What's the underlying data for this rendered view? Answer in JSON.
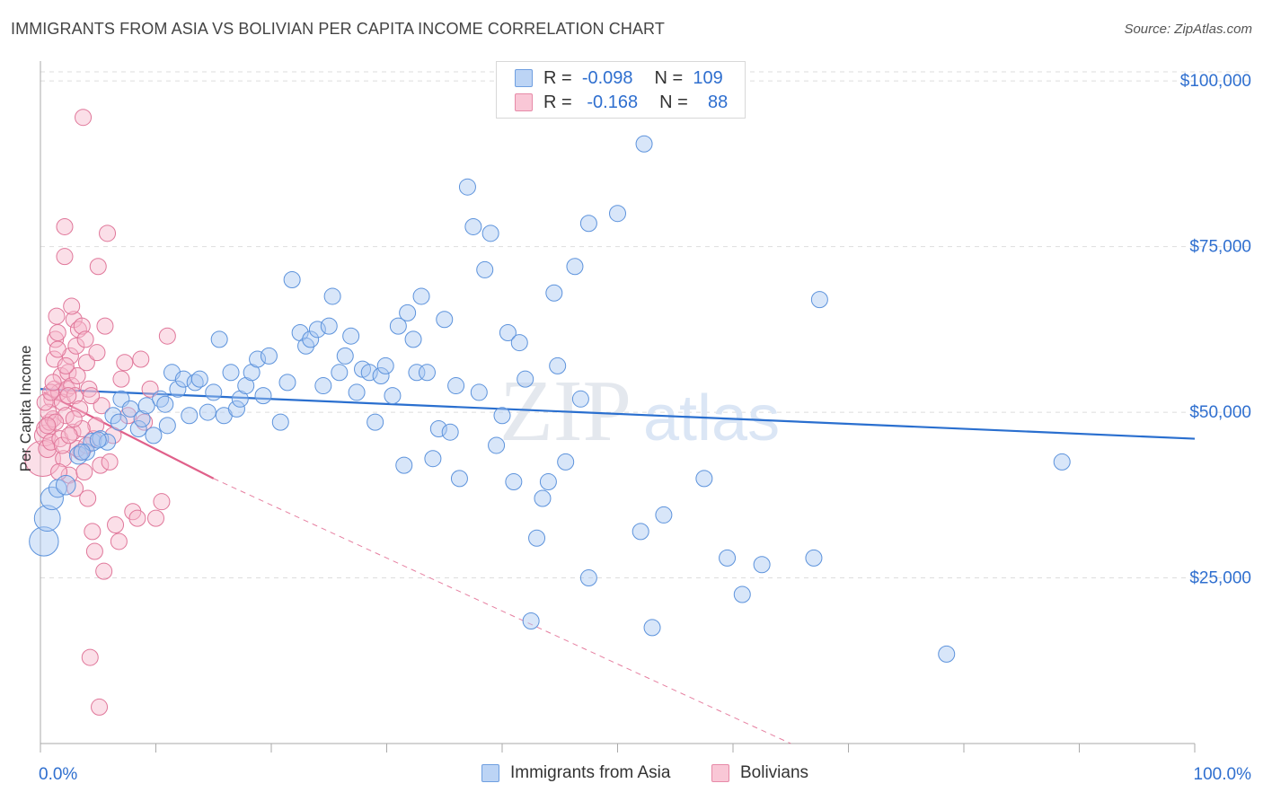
{
  "title": "IMMIGRANTS FROM ASIA VS BOLIVIAN PER CAPITA INCOME CORRELATION CHART",
  "source": "Source: ZipAtlas.com",
  "watermark": {
    "zip": "ZIP",
    "atlas": "atlas"
  },
  "legend": {
    "rows": [
      {
        "r_label": "R =",
        "r_value": "-0.098",
        "n_label": "N =",
        "n_value": "109"
      },
      {
        "r_label": "R =",
        "r_value": "-0.168",
        "n_label": "N =",
        "n_value": "88"
      }
    ]
  },
  "bottom_legend": [
    "Immigrants from Asia",
    "Bolivians"
  ],
  "colors": {
    "asia_fill": "#a9c8f2",
    "asia_stroke": "#5d93dc",
    "asia_line": "#2a6fcf",
    "bol_fill": "#f7b8cb",
    "bol_stroke": "#e0779a",
    "bol_line": "#e0608a",
    "tick_label": "#2f6fcf",
    "grid": "#dddddd"
  },
  "chart_data": {
    "type": "scatter",
    "ylabel": "Per Capita Income",
    "xlim": [
      0,
      100
    ],
    "ylim": [
      0,
      103000
    ],
    "x_tick_labels": [
      "0.0%",
      "100.0%"
    ],
    "y_ticks": [
      25000,
      50000,
      75000,
      100000
    ],
    "y_tick_labels": [
      "$25,000",
      "$50,000",
      "$75,000",
      "$100,000"
    ],
    "series": [
      {
        "name": "Immigrants from Asia",
        "trend": {
          "x": [
            0,
            100
          ],
          "y": [
            53500,
            46000
          ],
          "dashed_extension": false
        },
        "points": [
          [
            0.3,
            30500,
            1.8
          ],
          [
            0.6,
            34000,
            1.6
          ],
          [
            1.0,
            37000,
            1.4
          ],
          [
            1.5,
            38500,
            1.1
          ],
          [
            2.2,
            39000,
            1.2
          ],
          [
            3.3,
            43500,
            1.1
          ],
          [
            4.0,
            44000,
            1.0
          ],
          [
            4.5,
            45500,
            1.1
          ],
          [
            5.2,
            46000,
            1.0
          ],
          [
            5.8,
            45500,
            1.0
          ],
          [
            6.3,
            49500,
            1.0
          ],
          [
            7.0,
            52000,
            1.0
          ],
          [
            7.8,
            50500,
            1.0
          ],
          [
            8.5,
            47500,
            1.0
          ],
          [
            8.8,
            49000,
            1.0
          ],
          [
            9.2,
            51000,
            1.0
          ],
          [
            9.8,
            46500,
            1.0
          ],
          [
            10.4,
            52000,
            1.0
          ],
          [
            11.0,
            48000,
            1.0
          ],
          [
            11.4,
            56000,
            1.0
          ],
          [
            11.9,
            53500,
            1.0
          ],
          [
            12.4,
            55000,
            1.0
          ],
          [
            12.9,
            49500,
            1.0
          ],
          [
            13.4,
            54500,
            1.0
          ],
          [
            13.8,
            55000,
            1.0
          ],
          [
            14.5,
            50000,
            1.0
          ],
          [
            15.0,
            53000,
            1.0
          ],
          [
            15.5,
            61000,
            1.0
          ],
          [
            15.9,
            49500,
            1.0
          ],
          [
            16.5,
            56000,
            1.0
          ],
          [
            17.0,
            50500,
            1.0
          ],
          [
            17.3,
            52000,
            1.0
          ],
          [
            17.8,
            54000,
            1.0
          ],
          [
            18.3,
            56000,
            1.0
          ],
          [
            18.8,
            58000,
            1.0
          ],
          [
            19.3,
            52500,
            1.0
          ],
          [
            19.8,
            58500,
            1.0
          ],
          [
            20.8,
            48500,
            1.0
          ],
          [
            21.4,
            54500,
            1.0
          ],
          [
            21.8,
            70000,
            1.0
          ],
          [
            22.5,
            62000,
            1.0
          ],
          [
            23.0,
            60000,
            1.0
          ],
          [
            23.4,
            61000,
            1.0
          ],
          [
            24.0,
            62500,
            1.0
          ],
          [
            24.5,
            54000,
            1.0
          ],
          [
            25.0,
            63000,
            1.0
          ],
          [
            25.3,
            67500,
            1.0
          ],
          [
            25.9,
            56000,
            1.0
          ],
          [
            26.4,
            58500,
            1.0
          ],
          [
            26.9,
            61500,
            1.0
          ],
          [
            27.4,
            53000,
            1.0
          ],
          [
            27.9,
            56500,
            1.0
          ],
          [
            28.5,
            56000,
            1.0
          ],
          [
            29.0,
            48500,
            1.0
          ],
          [
            29.5,
            55500,
            1.0
          ],
          [
            29.9,
            57000,
            1.0
          ],
          [
            30.5,
            52500,
            1.0
          ],
          [
            31.0,
            63000,
            1.0
          ],
          [
            31.5,
            42000,
            1.0
          ],
          [
            31.8,
            65000,
            1.0
          ],
          [
            32.3,
            61000,
            1.0
          ],
          [
            32.6,
            56000,
            1.0
          ],
          [
            33.0,
            67500,
            1.0
          ],
          [
            33.5,
            56000,
            1.0
          ],
          [
            34.0,
            43000,
            1.0
          ],
          [
            34.5,
            47500,
            1.0
          ],
          [
            35.0,
            64000,
            1.0
          ],
          [
            35.5,
            47000,
            1.0
          ],
          [
            36.0,
            54000,
            1.0
          ],
          [
            36.3,
            40000,
            1.0
          ],
          [
            37.0,
            84000,
            1.0
          ],
          [
            37.5,
            78000,
            1.0
          ],
          [
            38.0,
            53000,
            1.0
          ],
          [
            38.5,
            71500,
            1.0
          ],
          [
            39.0,
            77000,
            1.0
          ],
          [
            39.5,
            45000,
            1.0
          ],
          [
            40.0,
            49500,
            1.0
          ],
          [
            40.5,
            62000,
            1.0
          ],
          [
            41.0,
            39500,
            1.0
          ],
          [
            41.5,
            60500,
            1.0
          ],
          [
            42.0,
            55000,
            1.0
          ],
          [
            42.5,
            18500,
            1.0
          ],
          [
            43.0,
            31000,
            1.0
          ],
          [
            43.5,
            37000,
            1.0
          ],
          [
            44.0,
            39500,
            1.0
          ],
          [
            44.5,
            68000,
            1.0
          ],
          [
            44.8,
            57000,
            1.0
          ],
          [
            45.5,
            42500,
            1.0
          ],
          [
            46.3,
            72000,
            1.0
          ],
          [
            46.8,
            52000,
            1.0
          ],
          [
            47.5,
            78500,
            1.0
          ],
          [
            47.5,
            25000,
            1.0
          ],
          [
            50.0,
            80000,
            1.0
          ],
          [
            52.0,
            32000,
            1.0
          ],
          [
            52.3,
            90500,
            1.0
          ],
          [
            53.0,
            17500,
            1.0
          ],
          [
            54.0,
            34500,
            1.0
          ],
          [
            57.5,
            40000,
            1.0
          ],
          [
            59.5,
            28000,
            1.0
          ],
          [
            60.8,
            22500,
            1.0
          ],
          [
            62.5,
            27000,
            1.0
          ],
          [
            67.5,
            67000,
            1.0
          ],
          [
            67.0,
            28000,
            1.0
          ],
          [
            78.5,
            13500,
            1.0
          ],
          [
            88.5,
            42500,
            1.0
          ],
          [
            5.0,
            45800,
            1.0
          ],
          [
            3.6,
            44000,
            1.0
          ],
          [
            6.8,
            48500,
            1.0
          ],
          [
            10.8,
            51200,
            1.0
          ]
        ]
      },
      {
        "name": "Bolivians",
        "trend": {
          "x": [
            0.3,
            15
          ],
          "y": [
            53000,
            40000
          ],
          "extension_x": [
            15,
            65
          ],
          "extension_y": [
            40000,
            0
          ],
          "dashed_extension": true
        },
        "points": [
          [
            0.2,
            43000,
            2.2
          ],
          [
            0.4,
            46500,
            1.3
          ],
          [
            0.5,
            47500,
            1.2
          ],
          [
            0.6,
            44500,
            1.1
          ],
          [
            0.8,
            48500,
            1.0
          ],
          [
            0.9,
            45500,
            1.0
          ],
          [
            1.0,
            52000,
            1.0
          ],
          [
            1.1,
            49000,
            1.0
          ],
          [
            1.2,
            53500,
            1.0
          ],
          [
            1.2,
            58000,
            1.0
          ],
          [
            1.3,
            61000,
            1.0
          ],
          [
            1.4,
            64500,
            1.0
          ],
          [
            1.5,
            62000,
            1.0
          ],
          [
            1.6,
            53000,
            1.0
          ],
          [
            1.7,
            46000,
            1.0
          ],
          [
            1.8,
            55500,
            1.0
          ],
          [
            1.9,
            51500,
            1.0
          ],
          [
            2.0,
            43000,
            1.0
          ],
          [
            2.1,
            73500,
            1.0
          ],
          [
            2.1,
            78000,
            1.0
          ],
          [
            2.2,
            49500,
            1.0
          ],
          [
            2.3,
            53500,
            1.0
          ],
          [
            2.4,
            56000,
            1.0
          ],
          [
            2.5,
            40500,
            1.0
          ],
          [
            2.6,
            58500,
            1.0
          ],
          [
            2.7,
            54000,
            1.0
          ],
          [
            2.8,
            47000,
            1.0
          ],
          [
            2.9,
            64000,
            1.0
          ],
          [
            3.0,
            52500,
            1.0
          ],
          [
            3.1,
            60000,
            1.0
          ],
          [
            3.2,
            55500,
            1.0
          ],
          [
            3.3,
            62500,
            1.0
          ],
          [
            3.4,
            50500,
            1.0
          ],
          [
            3.5,
            44000,
            1.0
          ],
          [
            3.6,
            63000,
            1.0
          ],
          [
            3.7,
            94500,
            1.0
          ],
          [
            3.8,
            41000,
            1.0
          ],
          [
            3.9,
            61000,
            1.0
          ],
          [
            4.0,
            57500,
            1.0
          ],
          [
            4.1,
            37000,
            1.0
          ],
          [
            4.2,
            53500,
            1.0
          ],
          [
            4.3,
            13000,
            1.0
          ],
          [
            4.5,
            32000,
            1.0
          ],
          [
            4.6,
            46000,
            1.0
          ],
          [
            4.7,
            29000,
            1.0
          ],
          [
            4.8,
            48000,
            1.0
          ],
          [
            4.9,
            59000,
            1.0
          ],
          [
            5.0,
            72000,
            1.0
          ],
          [
            5.1,
            5500,
            1.0
          ],
          [
            5.2,
            42000,
            1.0
          ],
          [
            5.3,
            51000,
            1.0
          ],
          [
            5.5,
            26000,
            1.0
          ],
          [
            5.6,
            63000,
            1.0
          ],
          [
            5.8,
            77000,
            1.0
          ],
          [
            6.0,
            42500,
            1.0
          ],
          [
            6.3,
            46500,
            1.0
          ],
          [
            6.5,
            33000,
            1.0
          ],
          [
            6.8,
            30500,
            1.0
          ],
          [
            7.0,
            55000,
            1.0
          ],
          [
            7.3,
            57500,
            1.0
          ],
          [
            7.6,
            49500,
            1.0
          ],
          [
            8.0,
            35000,
            1.0
          ],
          [
            8.4,
            34000,
            1.0
          ],
          [
            8.7,
            58000,
            1.0
          ],
          [
            9.0,
            48500,
            1.0
          ],
          [
            9.5,
            53500,
            1.0
          ],
          [
            10.0,
            34000,
            1.0
          ],
          [
            10.5,
            36500,
            1.0
          ],
          [
            11.0,
            61500,
            1.0
          ],
          [
            0.7,
            50000,
            1.0
          ],
          [
            1.3,
            48500,
            1.0
          ],
          [
            2.4,
            52500,
            1.0
          ],
          [
            3.2,
            44500,
            1.0
          ],
          [
            1.9,
            45000,
            1.0
          ],
          [
            2.7,
            66000,
            1.0
          ],
          [
            0.4,
            51500,
            1.0
          ],
          [
            1.6,
            41000,
            1.0
          ],
          [
            3.6,
            47500,
            1.0
          ],
          [
            4.4,
            52500,
            1.0
          ],
          [
            0.9,
            53000,
            1.0
          ],
          [
            2.2,
            57000,
            1.0
          ],
          [
            3.0,
            38500,
            1.0
          ],
          [
            1.1,
            54500,
            1.0
          ],
          [
            2.9,
            49000,
            1.0
          ],
          [
            4.0,
            45000,
            1.0
          ],
          [
            1.5,
            59500,
            1.0
          ],
          [
            0.6,
            48000,
            1.0
          ],
          [
            2.5,
            46500,
            1.0
          ]
        ]
      }
    ]
  }
}
